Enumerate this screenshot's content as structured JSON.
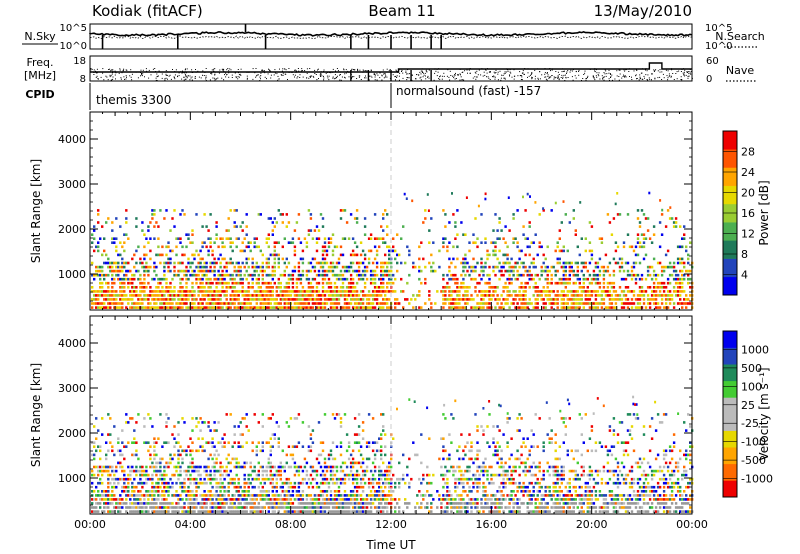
{
  "header": {
    "station": "Kodiak (fitACF)",
    "beam": "Beam 11",
    "date": "13/May/2010"
  },
  "top_panels": {
    "nsky_label": "N.Sky",
    "nsearch_label": "N.Search",
    "noise_ticks": [
      "10^5",
      "10^0"
    ],
    "freq_label_line1": "Freq.",
    "freq_label_line2": "[MHz]",
    "freq_ticks": [
      "18",
      "8"
    ],
    "nave_label": "Nave",
    "nave_ticks": [
      "60",
      "0"
    ],
    "cpid_label": "CPID",
    "cpid_segments": [
      {
        "label": "themis 3300",
        "start_hour": 0.0,
        "end_hour": 12.0
      },
      {
        "label": "normalsound (fast) -157",
        "start_hour": 12.0,
        "end_hour": 24.0
      }
    ]
  },
  "colors": {
    "power_scale": [
      "#0000ee",
      "#2244bb",
      "#1f7a5a",
      "#4caf50",
      "#9acd32",
      "#e6d800",
      "#ffa500",
      "#ff5500",
      "#ee0000"
    ],
    "velocity_scale": [
      "#ee0000",
      "#ff6a00",
      "#ffa500",
      "#e6d800",
      "#bbbbbb",
      "#bbbbbb",
      "#44cc33",
      "#1f8a5a",
      "#2244bb",
      "#0000ee"
    ],
    "ground_scatter": "#999999"
  },
  "chart_data": [
    {
      "type": "heatmap",
      "name": "power",
      "xlabel": "",
      "ylabel": "Slant Range [km]",
      "xlim": [
        0,
        24
      ],
      "ylim": [
        200,
        4600
      ],
      "yticks": [
        "1000",
        "2000",
        "3000",
        "4000"
      ],
      "colorbar_label": "Power [dB]",
      "colorbar_ticks": [
        "4",
        "8",
        "12",
        "16",
        "20",
        "24",
        "28"
      ],
      "colorbar_range": [
        0,
        30
      ]
    },
    {
      "type": "heatmap",
      "name": "velocity",
      "xlabel": "Time UT",
      "ylabel": "Slant Range [km]",
      "xlim": [
        0,
        24
      ],
      "ylim": [
        200,
        4600
      ],
      "xticks": [
        "00:00",
        "04:00",
        "08:00",
        "12:00",
        "16:00",
        "20:00",
        "00:00"
      ],
      "yticks": [
        "1000",
        "2000",
        "3000",
        "4000"
      ],
      "colorbar_label": "Velocity [m s⁻¹]",
      "colorbar_ticks": [
        "-1000",
        "-500",
        "-100",
        "-25",
        "25",
        "100",
        "500",
        "1000"
      ],
      "colorbar_range": [
        -1200,
        1200
      ]
    }
  ]
}
